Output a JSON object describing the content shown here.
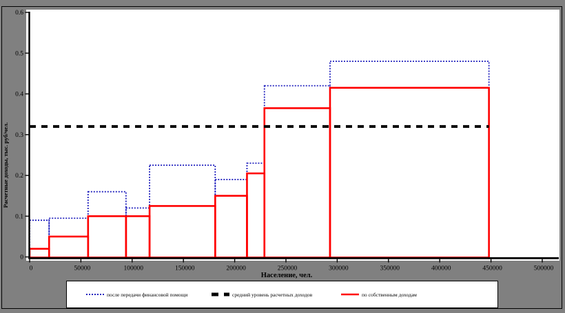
{
  "window": {
    "background_color": "#808080",
    "plot_background_color": "#ffffff"
  },
  "chart_data": {
    "type": "step-histogram",
    "title": "",
    "xlabel": "Население, чел.",
    "ylabel": "Расчетные доходы, тыс. руб/чел.",
    "xlim": [
      0,
      500000
    ],
    "ylim": [
      0,
      0.6
    ],
    "grid": false,
    "x_tick_labels": [
      "0",
      "50000",
      "100000",
      "150000",
      "200000",
      "250000",
      "300000",
      "350000",
      "400000",
      "450000",
      "500000"
    ],
    "y_tick_labels": [
      "0",
      "0.1",
      "0.2",
      "0.3",
      "0.4",
      "0.5",
      "0.6"
    ],
    "boundaries": [
      0,
      19000,
      57000,
      94000,
      117000,
      181000,
      212000,
      229000,
      293000,
      448000
    ],
    "series": [
      {
        "name": "после передачи финансовой помощи",
        "color": "#2222BE",
        "style": "dotted",
        "values": [
          0.09,
          0.095,
          0.16,
          0.12,
          0.225,
          0.19,
          0.23,
          0.42,
          0.48
        ]
      },
      {
        "name": "по собственным доходам",
        "color": "#FF0000",
        "style": "solid",
        "values": [
          0.02,
          0.05,
          0.1,
          0.1,
          0.125,
          0.15,
          0.205,
          0.365,
          0.415
        ]
      }
    ],
    "average_line": {
      "value": 0.32,
      "label": "средний уровень расчетных доходов",
      "color": "#000000",
      "style": "dashed"
    },
    "legend_position": "bottom"
  },
  "legend": {
    "items": [
      {
        "label": "после передачи финансовой помощи",
        "swatch": "dotted-blue-line"
      },
      {
        "label": "средний уровень расчетных доходов",
        "swatch": "dashed-black-line"
      },
      {
        "label": "по собственным доходам",
        "swatch": "solid-red-line"
      }
    ]
  }
}
